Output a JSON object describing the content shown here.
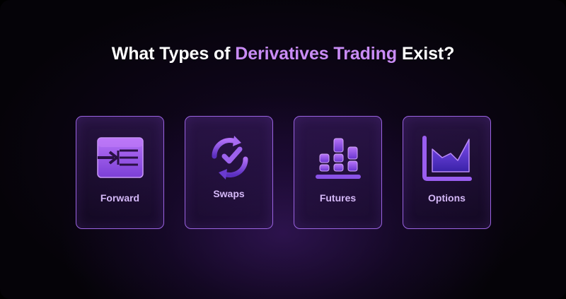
{
  "title": {
    "prefix": "What Types of ",
    "accent": "Derivatives Trading",
    "suffix": " Exist?"
  },
  "colors": {
    "accent": "#c98cf5",
    "card_border": "#9a63e0",
    "icon_primary": "#a15ef0",
    "label": "#d4b8f7"
  },
  "cards": [
    {
      "label": "Forward",
      "icon": "forward-arrow-box-icon"
    },
    {
      "label": "Swaps",
      "icon": "swap-cycle-check-icon"
    },
    {
      "label": "Futures",
      "icon": "bar-stack-icon"
    },
    {
      "label": "Options",
      "icon": "area-chart-icon"
    }
  ]
}
